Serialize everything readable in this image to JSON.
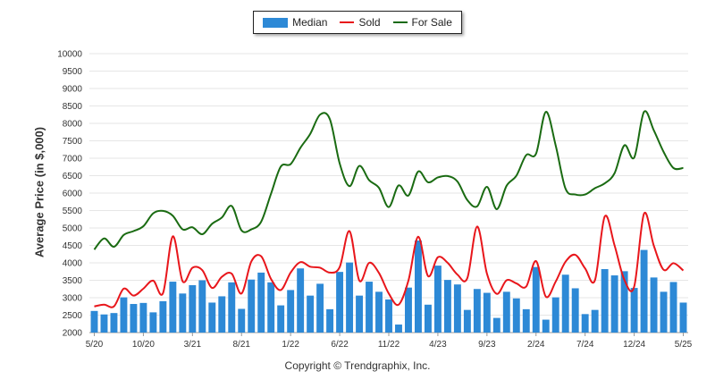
{
  "legend": {
    "median_label": "Median",
    "sold_label": "Sold",
    "forsale_label": "For Sale"
  },
  "copyright": "Copyright © Trendgraphix, Inc.",
  "colors": {
    "median": "#2d89d6",
    "sold": "#e8161b",
    "forsale": "#1a6b12",
    "grid": "#e6e6e6"
  },
  "chart_data": {
    "type": "bar",
    "title": "",
    "xlabel": "",
    "ylabel": "Average Price (in $,000)",
    "ylim": [
      2000,
      10000
    ],
    "yticks": [
      2000,
      2500,
      3000,
      3500,
      4000,
      4500,
      5000,
      5500,
      6000,
      6500,
      7000,
      7500,
      8000,
      8500,
      9000,
      9500,
      10000
    ],
    "grid": true,
    "legend_position": "top-center",
    "xtick_labels": [
      {
        "index": 0,
        "label": "5/20"
      },
      {
        "index": 5,
        "label": "10/20"
      },
      {
        "index": 10,
        "label": "3/21"
      },
      {
        "index": 15,
        "label": "8/21"
      },
      {
        "index": 20,
        "label": "1/22"
      },
      {
        "index": 25,
        "label": "6/22"
      },
      {
        "index": 30,
        "label": "11/22"
      },
      {
        "index": 35,
        "label": "4/23"
      },
      {
        "index": 40,
        "label": "9/23"
      },
      {
        "index": 45,
        "label": "2/24"
      },
      {
        "index": 50,
        "label": "7/24"
      },
      {
        "index": 55,
        "label": "12/24"
      },
      {
        "index": 60,
        "label": "5/25"
      }
    ],
    "series": [
      {
        "name": "Median",
        "type": "bar",
        "values": [
          2620,
          2520,
          2560,
          3010,
          2820,
          2850,
          2580,
          2900,
          3460,
          3120,
          3360,
          3500,
          2860,
          3040,
          3440,
          2680,
          3520,
          3720,
          3440,
          2780,
          3220,
          3840,
          3060,
          3400,
          2670,
          3740,
          4010,
          3060,
          3460,
          3170,
          2950,
          2230,
          3290,
          4640,
          2800,
          3920,
          3510,
          3380,
          2650,
          3250,
          3140,
          2420,
          3170,
          2980,
          2670,
          3880,
          2370,
          3010,
          3660,
          3270,
          2530,
          2650,
          3820,
          3640,
          3760,
          3280,
          4370,
          3580,
          3170,
          3450,
          2860
        ]
      },
      {
        "name": "Sold",
        "type": "line",
        "values": [
          2750,
          2800,
          2750,
          3260,
          3060,
          3260,
          3490,
          3130,
          4760,
          3470,
          3860,
          3790,
          3280,
          3600,
          3690,
          3120,
          4040,
          4190,
          3540,
          3220,
          3720,
          4020,
          3890,
          3860,
          3720,
          3880,
          4910,
          3490,
          4000,
          3710,
          3120,
          2800,
          3490,
          4750,
          3620,
          4160,
          4000,
          3660,
          3560,
          5040,
          3690,
          3110,
          3500,
          3410,
          3320,
          4050,
          3030,
          3460,
          4030,
          4230,
          3840,
          3500,
          5330,
          4500,
          3510,
          3320,
          5410,
          4490,
          3800,
          3990,
          3780
        ]
      },
      {
        "name": "For Sale",
        "type": "line",
        "values": [
          4380,
          4700,
          4460,
          4800,
          4910,
          5050,
          5420,
          5490,
          5350,
          4960,
          5020,
          4820,
          5120,
          5300,
          5630,
          4930,
          4960,
          5180,
          5980,
          6760,
          6830,
          7300,
          7700,
          8250,
          8120,
          6850,
          6200,
          6780,
          6370,
          6150,
          5600,
          6220,
          5930,
          6620,
          6310,
          6450,
          6490,
          6330,
          5800,
          5620,
          6180,
          5540,
          6210,
          6500,
          7090,
          7130,
          8330,
          7370,
          6130,
          5960,
          5960,
          6140,
          6280,
          6570,
          7370,
          7020,
          8330,
          7800,
          7180,
          6720,
          6720
        ]
      }
    ]
  }
}
